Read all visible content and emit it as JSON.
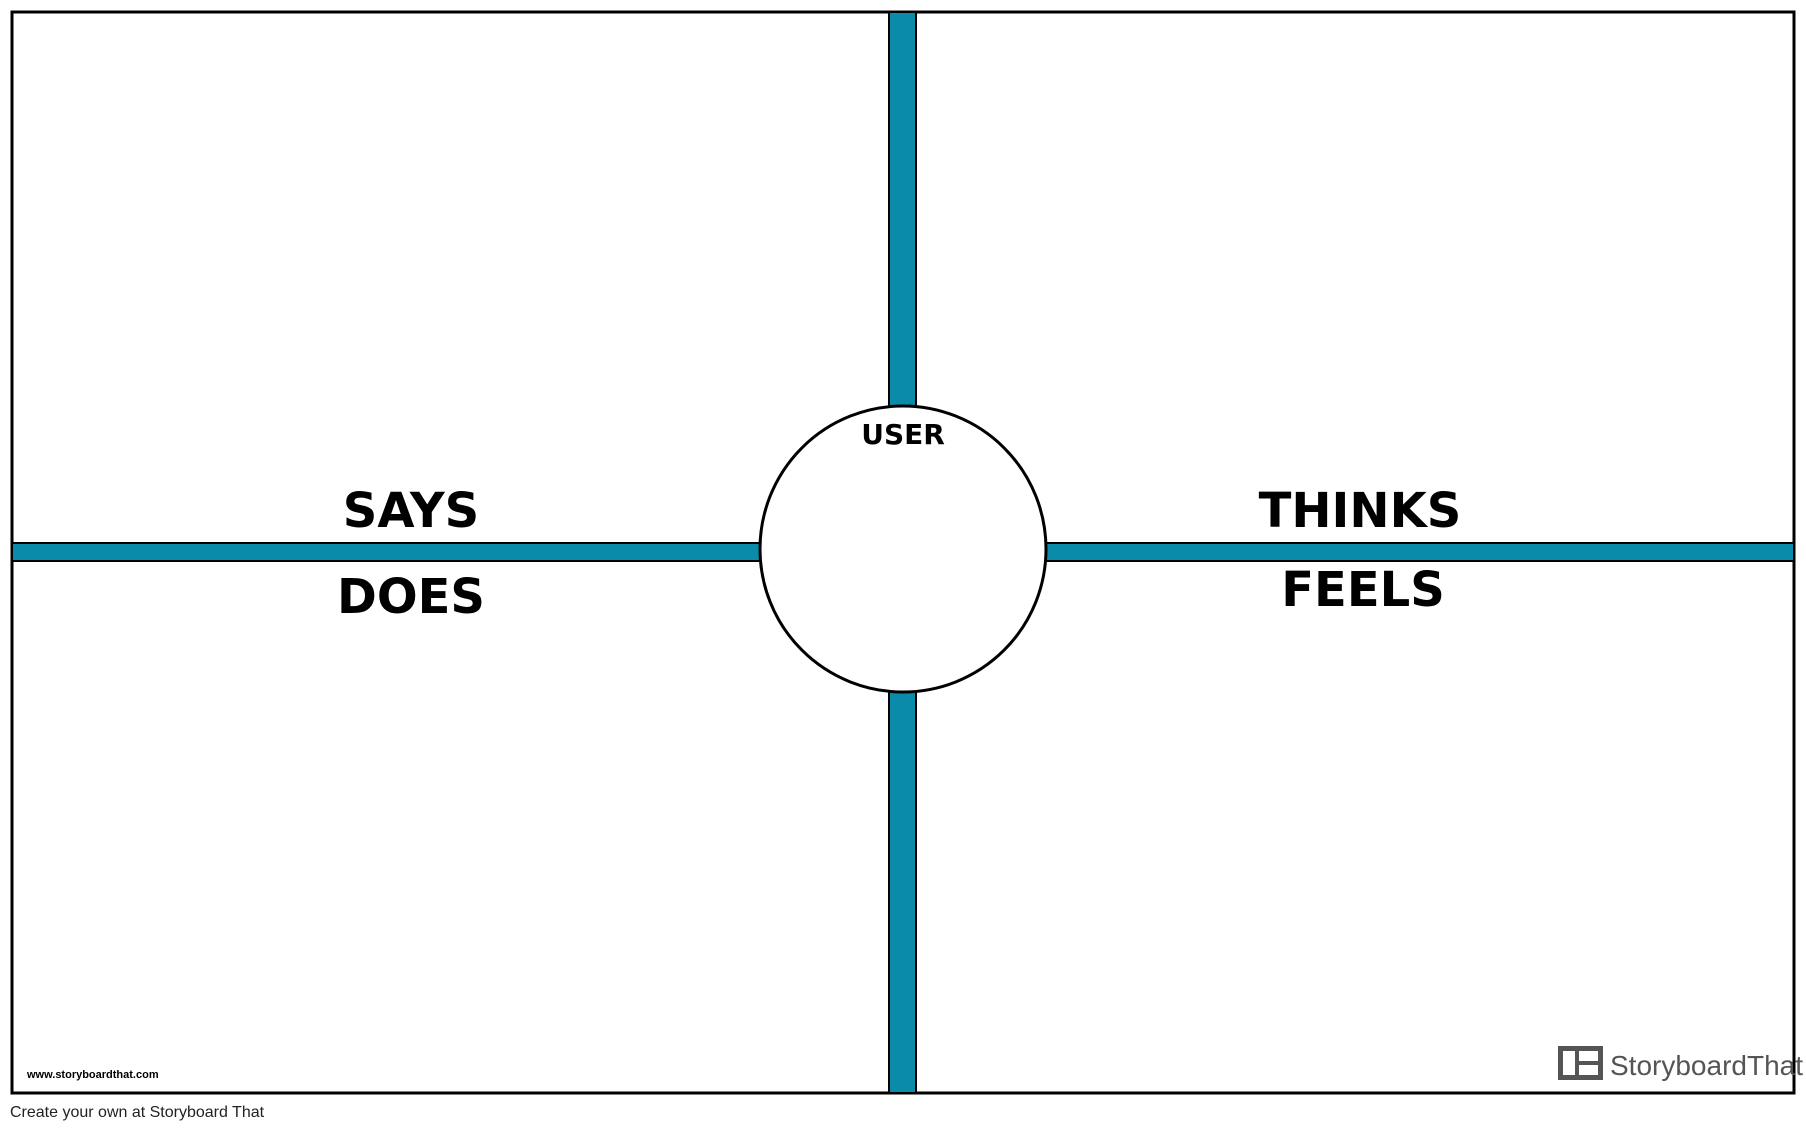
{
  "diagram": {
    "quadrants": {
      "top_left": "SAYS",
      "bottom_left": "DOES",
      "top_right": "THINKS",
      "bottom_right": "FEELS"
    },
    "center_label": "USER",
    "divider_color": "#0A8BAA",
    "border_color": "#000000"
  },
  "footer": {
    "website": "www.storyboardthat.com",
    "brand_name": "StoryboardThat",
    "brand_icon": "storyboard-panels-icon",
    "brand_color": "#555555"
  },
  "caption": "Create your own at Storyboard That"
}
